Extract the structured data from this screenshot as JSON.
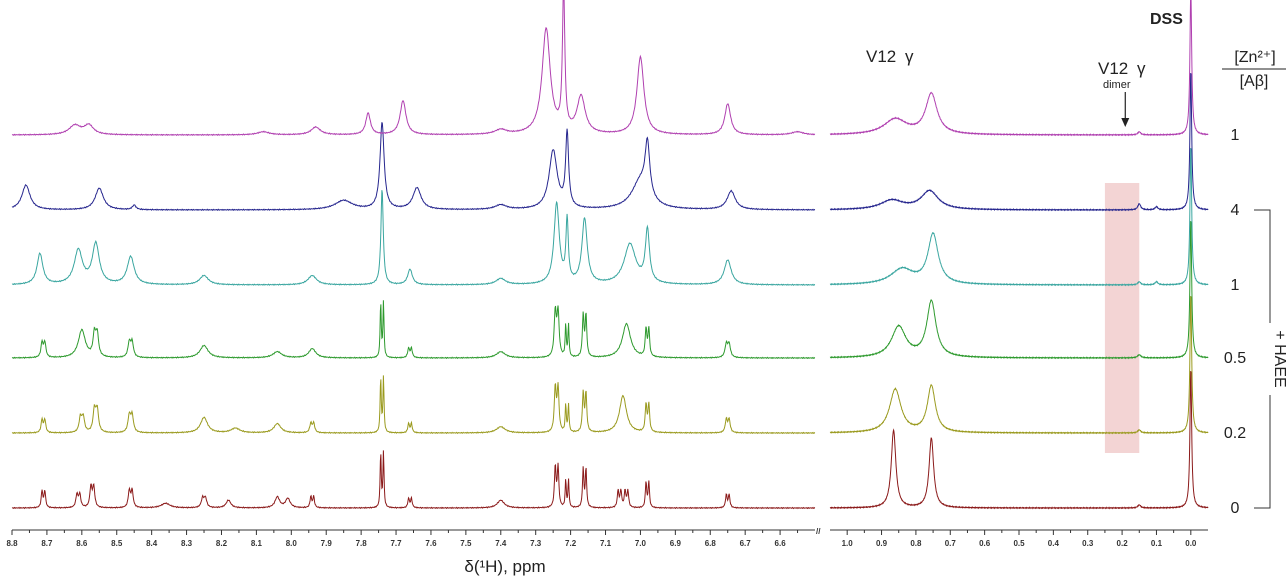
{
  "chart_data": {
    "type": "line",
    "xlabel": "δ(¹H), ppm",
    "x_reversed": true,
    "broken_axis": true,
    "x_segments": [
      {
        "from": 8.8,
        "to": 6.5,
        "ticks": [
          "8.8",
          "8.7",
          "8.6",
          "8.5",
          "8.4",
          "8.3",
          "8.2",
          "8.1",
          "8.0",
          "7.9",
          "7.8",
          "7.7",
          "7.6",
          "7.5",
          "7.4",
          "7.3",
          "7.2",
          "7.1",
          "7.0",
          "6.9",
          "6.8",
          "6.7",
          "6.6"
        ]
      },
      {
        "from": 1.05,
        "to": -0.05,
        "ticks": [
          "1.0",
          "0.9",
          "0.8",
          "0.7",
          "0.6",
          "0.5",
          "0.4",
          "0.3",
          "0.2",
          "0.1",
          "0.0"
        ]
      }
    ],
    "axis_break_mark": "//",
    "colors": [
      "#8b1a1a",
      "#9a9a1e",
      "#2e9a2e",
      "#3aa6a0",
      "#26268e",
      "#b040b0"
    ],
    "series": [
      {
        "ratio": "0",
        "condition": "+ HAEE",
        "color": "#8b1a1a",
        "split_multiplets": true,
        "peaks_aromatic": [
          [
            8.71,
            18,
            0.006
          ],
          [
            8.61,
            14,
            0.008
          ],
          [
            8.57,
            22,
            0.008
          ],
          [
            8.46,
            18,
            0.008
          ],
          [
            8.36,
            3,
            0.015
          ],
          [
            8.25,
            10,
            0.01
          ],
          [
            8.18,
            5,
            0.008
          ],
          [
            8.04,
            7,
            0.008
          ],
          [
            8.01,
            6,
            0.008
          ],
          [
            7.94,
            12,
            0.006
          ],
          [
            7.74,
            60,
            0.004
          ],
          [
            7.66,
            10,
            0.006
          ],
          [
            7.4,
            5,
            0.012
          ],
          [
            7.24,
            44,
            0.006
          ],
          [
            7.21,
            30,
            0.004
          ],
          [
            7.16,
            42,
            0.005
          ],
          [
            7.06,
            18,
            0.006
          ],
          [
            7.04,
            18,
            0.006
          ],
          [
            6.98,
            28,
            0.005
          ],
          [
            6.75,
            14,
            0.006
          ]
        ],
        "peaks_aliphatic": [
          [
            0.865,
            50,
            0.008
          ],
          [
            0.755,
            45,
            0.008
          ],
          [
            0.15,
            2,
            0.005
          ],
          [
            0.0,
            90,
            0.003
          ]
        ]
      },
      {
        "ratio": "0.2",
        "condition": "+ HAEE",
        "color": "#9a9a1e",
        "split_multiplets": true,
        "peaks_aromatic": [
          [
            8.71,
            14,
            0.007
          ],
          [
            8.6,
            16,
            0.01
          ],
          [
            8.56,
            24,
            0.01
          ],
          [
            8.46,
            18,
            0.01
          ],
          [
            8.25,
            10,
            0.012
          ],
          [
            8.16,
            3,
            0.015
          ],
          [
            8.04,
            6,
            0.012
          ],
          [
            7.94,
            10,
            0.008
          ],
          [
            7.74,
            60,
            0.004
          ],
          [
            7.66,
            10,
            0.006
          ],
          [
            7.4,
            4,
            0.015
          ],
          [
            7.24,
            48,
            0.007
          ],
          [
            7.21,
            30,
            0.004
          ],
          [
            7.16,
            42,
            0.006
          ],
          [
            7.05,
            24,
            0.012
          ],
          [
            6.98,
            30,
            0.006
          ],
          [
            6.75,
            14,
            0.008
          ]
        ],
        "peaks_aliphatic": [
          [
            0.86,
            28,
            0.02
          ],
          [
            0.755,
            30,
            0.014
          ],
          [
            0.15,
            2,
            0.005
          ],
          [
            0.0,
            90,
            0.003
          ]
        ]
      },
      {
        "ratio": "0.5",
        "condition": "+ HAEE",
        "color": "#2e9a2e",
        "split_multiplets": true,
        "peaks_aromatic": [
          [
            8.71,
            16,
            0.008
          ],
          [
            8.6,
            18,
            0.012
          ],
          [
            8.56,
            24,
            0.01
          ],
          [
            8.46,
            16,
            0.01
          ],
          [
            8.25,
            8,
            0.014
          ],
          [
            8.04,
            4,
            0.015
          ],
          [
            7.94,
            6,
            0.012
          ],
          [
            7.74,
            60,
            0.004
          ],
          [
            7.66,
            10,
            0.007
          ],
          [
            7.4,
            4,
            0.015
          ],
          [
            7.24,
            48,
            0.008
          ],
          [
            7.21,
            35,
            0.004
          ],
          [
            7.16,
            45,
            0.006
          ],
          [
            7.04,
            22,
            0.014
          ],
          [
            6.98,
            30,
            0.006
          ],
          [
            6.75,
            14,
            0.01
          ]
        ],
        "peaks_aliphatic": [
          [
            0.85,
            20,
            0.025
          ],
          [
            0.755,
            36,
            0.016
          ],
          [
            0.15,
            2,
            0.006
          ],
          [
            0.0,
            90,
            0.003
          ]
        ]
      },
      {
        "ratio": "1",
        "condition": "+ HAEE",
        "color": "#3aa6a0",
        "split_multiplets": false,
        "peaks_aromatic": [
          [
            8.72,
            20,
            0.01
          ],
          [
            8.61,
            22,
            0.014
          ],
          [
            8.56,
            26,
            0.012
          ],
          [
            8.46,
            18,
            0.012
          ],
          [
            8.25,
            6,
            0.015
          ],
          [
            7.94,
            6,
            0.015
          ],
          [
            7.74,
            62,
            0.004
          ],
          [
            7.66,
            10,
            0.008
          ],
          [
            7.4,
            4,
            0.016
          ],
          [
            7.24,
            52,
            0.009
          ],
          [
            7.21,
            40,
            0.004
          ],
          [
            7.16,
            42,
            0.009
          ],
          [
            7.03,
            26,
            0.02
          ],
          [
            6.98,
            34,
            0.007
          ],
          [
            6.75,
            16,
            0.012
          ]
        ],
        "peaks_aliphatic": [
          [
            0.84,
            10,
            0.04
          ],
          [
            0.75,
            32,
            0.018
          ],
          [
            0.15,
            2,
            0.005
          ],
          [
            0.1,
            2,
            0.005
          ],
          [
            0.0,
            90,
            0.003
          ]
        ]
      },
      {
        "ratio": "4",
        "condition": "+ HAEE",
        "color": "#26268e",
        "split_multiplets": false,
        "peaks_aromatic": [
          [
            8.76,
            16,
            0.014
          ],
          [
            8.55,
            14,
            0.014
          ],
          [
            8.45,
            3,
            0.006
          ],
          [
            7.85,
            6,
            0.03
          ],
          [
            7.74,
            56,
            0.007
          ],
          [
            7.64,
            14,
            0.014
          ],
          [
            7.4,
            3,
            0.02
          ],
          [
            7.25,
            38,
            0.014
          ],
          [
            7.21,
            48,
            0.005
          ],
          [
            7.0,
            18,
            0.03
          ],
          [
            6.98,
            34,
            0.008
          ],
          [
            6.74,
            12,
            0.014
          ]
        ],
        "peaks_aliphatic": [
          [
            0.87,
            6,
            0.04
          ],
          [
            0.76,
            12,
            0.03
          ],
          [
            0.15,
            4,
            0.005
          ],
          [
            0.1,
            2,
            0.005
          ],
          [
            0.0,
            90,
            0.003
          ]
        ]
      },
      {
        "ratio": "1",
        "condition": "",
        "color": "#b040b0",
        "split_multiplets": false,
        "peaks_aromatic": [
          [
            8.62,
            6,
            0.02
          ],
          [
            8.58,
            6,
            0.016
          ],
          [
            8.08,
            2,
            0.02
          ],
          [
            7.93,
            5,
            0.016
          ],
          [
            7.78,
            14,
            0.008
          ],
          [
            7.68,
            22,
            0.01
          ],
          [
            7.4,
            3,
            0.02
          ],
          [
            7.27,
            68,
            0.014
          ],
          [
            7.22,
            92,
            0.004
          ],
          [
            7.17,
            24,
            0.014
          ],
          [
            7.0,
            50,
            0.012
          ],
          [
            6.75,
            20,
            0.01
          ],
          [
            6.55,
            2,
            0.02
          ]
        ],
        "peaks_aliphatic": [
          [
            0.86,
            10,
            0.04
          ],
          [
            0.755,
            26,
            0.02
          ],
          [
            0.15,
            2,
            0.005
          ],
          [
            0.0,
            95,
            0.003
          ]
        ]
      }
    ],
    "annotations": {
      "v12_label": "V12",
      "gamma": "γ",
      "v12_dimer_label": "V12",
      "dimer_subscript": "dimer",
      "dss_label": "DSS",
      "ratio_header_num": "[Zn²⁺]",
      "ratio_header_den": "[Aβ]",
      "bracket_label": "+ HAEE",
      "highlight_range_ppm": [
        0.25,
        0.15
      ],
      "highlight_color": "#f3d4d4"
    }
  }
}
